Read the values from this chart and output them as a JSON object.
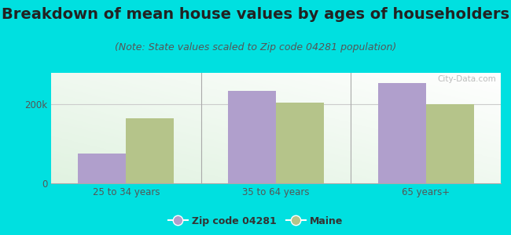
{
  "title": "Breakdown of mean house values by ages of householders",
  "subtitle": "(Note: State values scaled to Zip code 04281 population)",
  "categories": [
    "25 to 34 years",
    "35 to 64 years",
    "65 years+"
  ],
  "zip_values": [
    75000,
    235000,
    255000
  ],
  "state_values": [
    165000,
    205000,
    200000
  ],
  "ylim": [
    0,
    280000
  ],
  "yticks": [
    0,
    200000
  ],
  "ytick_labels": [
    "0",
    "200k"
  ],
  "zip_color": "#b09fcc",
  "state_color": "#b5c48a",
  "background_outer": "#00e0e0",
  "grid_color": "#cccccc",
  "title_fontsize": 14,
  "subtitle_fontsize": 9,
  "legend_zip_label": "Zip code 04281",
  "legend_state_label": "Maine",
  "bar_width": 0.32,
  "watermark": "City-Data.com"
}
